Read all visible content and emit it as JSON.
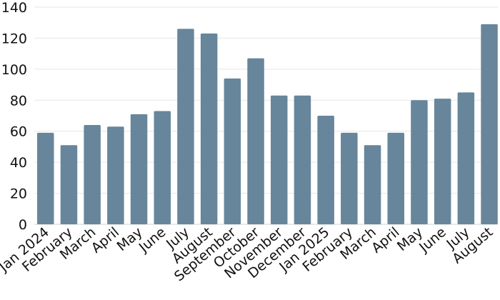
{
  "chart_data": {
    "type": "bar",
    "title": "",
    "xlabel": "",
    "ylabel": "",
    "ylim": [
      0,
      140
    ],
    "yticks": [
      0,
      20,
      40,
      60,
      80,
      100,
      120,
      140
    ],
    "grid": true,
    "legend": "none",
    "bar_color": "#67869b",
    "categories": [
      "Jan 2024",
      "February",
      "March",
      "April",
      "May",
      "June",
      "July",
      "August",
      "September",
      "October",
      "November",
      "December",
      "Jan 2025",
      "February",
      "March",
      "April",
      "May",
      "June",
      "July",
      "August"
    ],
    "values": [
      59,
      51,
      64,
      63,
      71,
      73,
      126,
      123,
      94,
      107,
      83,
      83,
      70,
      59,
      51,
      59,
      80,
      81,
      85,
      129
    ]
  }
}
